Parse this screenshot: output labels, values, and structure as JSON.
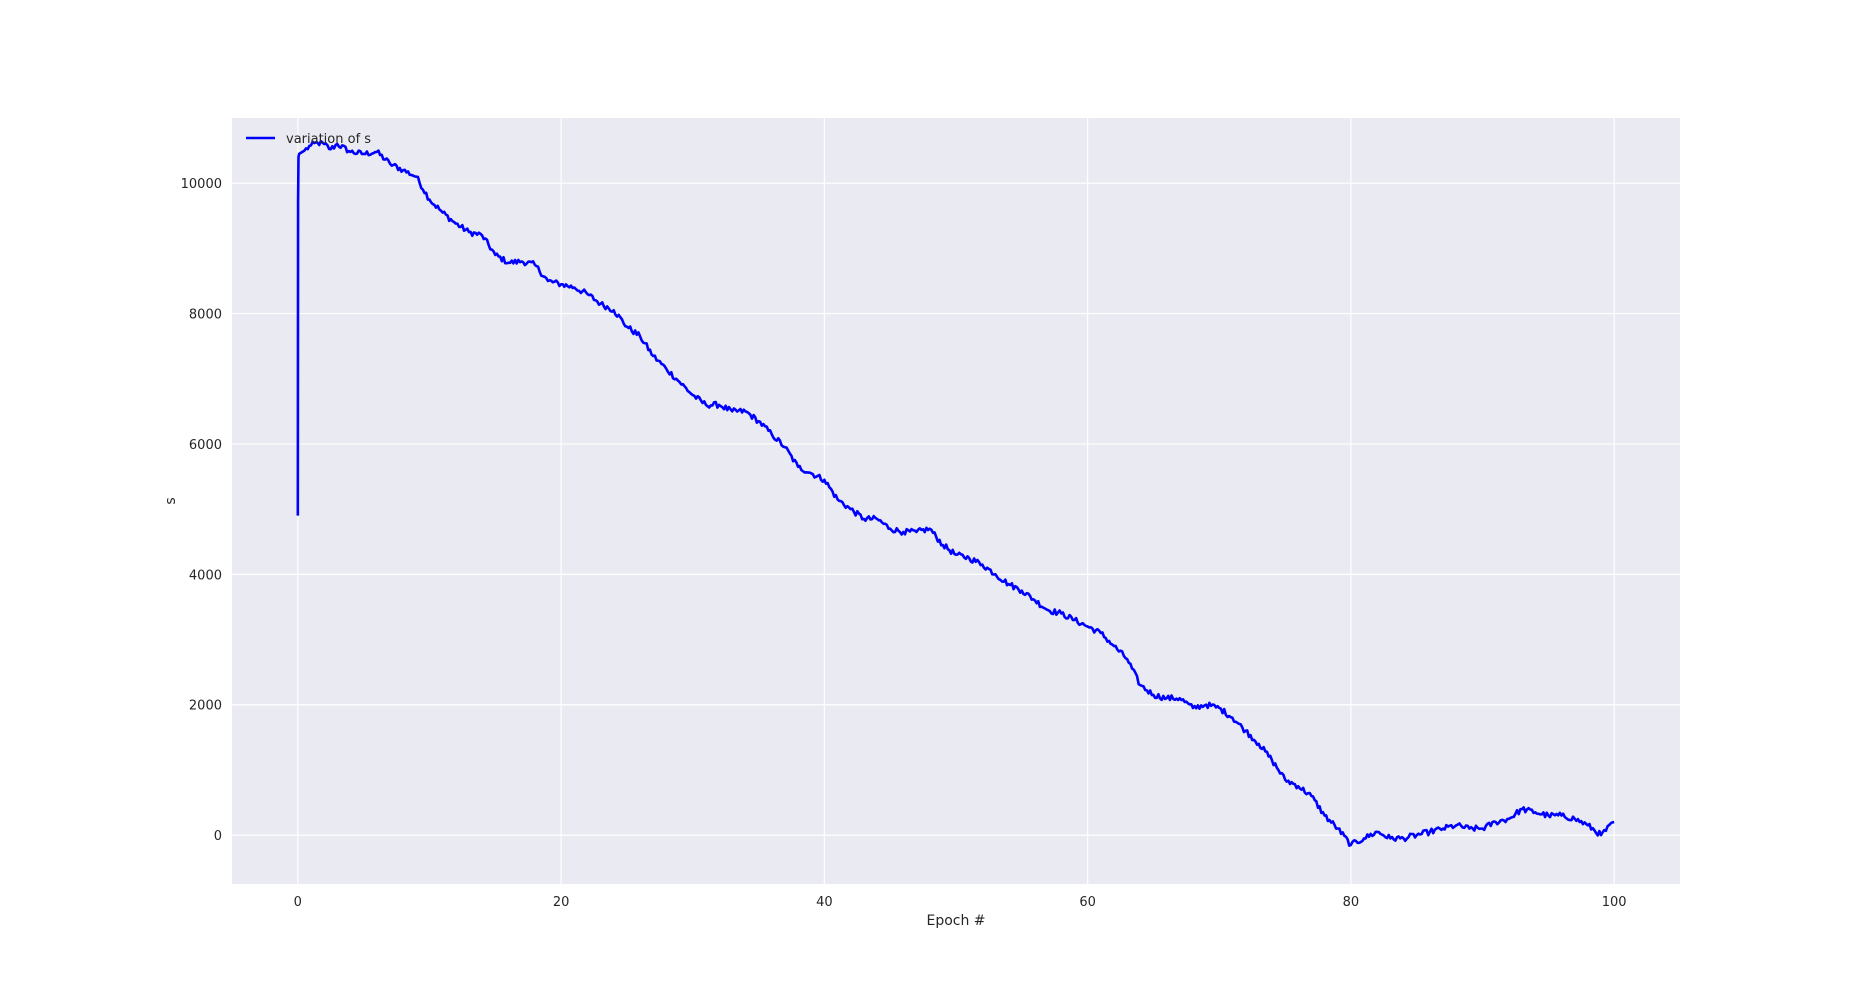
{
  "chart_data": {
    "type": "line",
    "title": "",
    "xlabel": "Epoch #",
    "ylabel": "s",
    "xlim": [
      -5,
      105
    ],
    "ylim": [
      -750,
      11000
    ],
    "xticks": [
      0,
      20,
      40,
      60,
      80,
      100
    ],
    "yticks": [
      0,
      2000,
      4000,
      6000,
      8000,
      10000
    ],
    "grid": true,
    "legend_position": "top-left",
    "colors": {
      "background": "#eaeaf2",
      "grid": "#ffffff",
      "line": "#0000ff",
      "text": "#262626"
    },
    "series": [
      {
        "name": "variation of s",
        "x": [
          0,
          0.02,
          0.05,
          0.1,
          0.5,
          1,
          1.5,
          2,
          2.5,
          3,
          4,
          5,
          6,
          7,
          8,
          9,
          10,
          11,
          12,
          13,
          14,
          15,
          16,
          17,
          18,
          19,
          20,
          21,
          22,
          23,
          24,
          25,
          26,
          27,
          28,
          29,
          30,
          31,
          32,
          33,
          34,
          35,
          36,
          37,
          38,
          39,
          40,
          41,
          42,
          43,
          44,
          45,
          46,
          47,
          48,
          49,
          50,
          51,
          52,
          53,
          54,
          55,
          56,
          57,
          58,
          59,
          60,
          61,
          62,
          63,
          64,
          65,
          66,
          67,
          68,
          69,
          70,
          71,
          72,
          73,
          74,
          75,
          76,
          77,
          78,
          79,
          80,
          81,
          82,
          83,
          84,
          85,
          86,
          87,
          88,
          89,
          90,
          91,
          92,
          93,
          94,
          95,
          96,
          97,
          98,
          99,
          100
        ],
        "y": [
          4900,
          9700,
          10400,
          10450,
          10500,
          10580,
          10620,
          10600,
          10520,
          10600,
          10480,
          10450,
          10480,
          10300,
          10200,
          10100,
          9750,
          9550,
          9380,
          9250,
          9200,
          8900,
          8780,
          8800,
          8750,
          8500,
          8450,
          8400,
          8300,
          8150,
          8050,
          7800,
          7650,
          7350,
          7150,
          6950,
          6750,
          6600,
          6600,
          6500,
          6500,
          6350,
          6150,
          5950,
          5650,
          5550,
          5450,
          5150,
          5000,
          4850,
          4850,
          4700,
          4650,
          4650,
          4700,
          4450,
          4300,
          4250,
          4150,
          4000,
          3850,
          3750,
          3600,
          3450,
          3400,
          3300,
          3200,
          3100,
          2900,
          2700,
          2300,
          2150,
          2100,
          2100,
          1950,
          2000,
          1950,
          1800,
          1600,
          1400,
          1150,
          850,
          750,
          600,
          300,
          100,
          -150,
          -50,
          50,
          -50,
          -50,
          0,
          50,
          100,
          150,
          100,
          100,
          200,
          250,
          400,
          350,
          300,
          300,
          250,
          150,
          0,
          200
        ]
      }
    ]
  }
}
